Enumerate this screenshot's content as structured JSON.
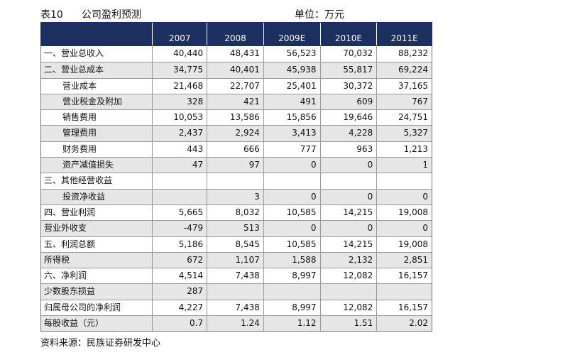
{
  "header": {
    "table_no": "表10",
    "caption": "公司盈利预测",
    "unit": "单位：万元"
  },
  "columns": [
    "",
    "2007",
    "2008",
    "2009E",
    "2010E",
    "2011E"
  ],
  "rows": [
    {
      "label": "一、营业总收入",
      "indent": false,
      "values": [
        "40,440",
        "48,431",
        "56,523",
        "70,032",
        "88,232"
      ]
    },
    {
      "label": "二、营业总成本",
      "indent": false,
      "values": [
        "34,775",
        "40,401",
        "45,938",
        "55,817",
        "69,224"
      ]
    },
    {
      "label": "营业成本",
      "indent": true,
      "values": [
        "21,468",
        "22,707",
        "25,401",
        "30,372",
        "37,165"
      ]
    },
    {
      "label": "营业税金及附加",
      "indent": true,
      "values": [
        "328",
        "421",
        "491",
        "609",
        "767"
      ]
    },
    {
      "label": "销售费用",
      "indent": true,
      "values": [
        "10,053",
        "13,586",
        "15,856",
        "19,646",
        "24,751"
      ]
    },
    {
      "label": "管理费用",
      "indent": true,
      "values": [
        "2,437",
        "2,924",
        "3,413",
        "4,228",
        "5,327"
      ]
    },
    {
      "label": "财务费用",
      "indent": true,
      "values": [
        "443",
        "666",
        "777",
        "963",
        "1,213"
      ]
    },
    {
      "label": "资产减值损失",
      "indent": true,
      "values": [
        "47",
        "97",
        "0",
        "0",
        "1"
      ]
    },
    {
      "label": "三、其他经营收益",
      "indent": false,
      "values": [
        "",
        "",
        "",
        "",
        ""
      ]
    },
    {
      "label": "投资净收益",
      "indent": true,
      "values": [
        "",
        "3",
        "0",
        "0",
        "0"
      ]
    },
    {
      "label": "四、营业利润",
      "indent": false,
      "values": [
        "5,665",
        "8,032",
        "10,585",
        "14,215",
        "19,008"
      ]
    },
    {
      "label": "营业外收支",
      "indent": false,
      "values": [
        "-479",
        "513",
        "0",
        "0",
        "0"
      ]
    },
    {
      "label": "五、利润总额",
      "indent": false,
      "values": [
        "5,186",
        "8,545",
        "10,585",
        "14,215",
        "19,008"
      ]
    },
    {
      "label": "所得税",
      "indent": false,
      "values": [
        "672",
        "1,107",
        "1,588",
        "2,132",
        "2,851"
      ]
    },
    {
      "label": "六、净利润",
      "indent": false,
      "values": [
        "4,514",
        "7,438",
        "8,997",
        "12,082",
        "16,157"
      ]
    },
    {
      "label": "少数股东损益",
      "indent": false,
      "values": [
        "287",
        "",
        "",
        "",
        ""
      ]
    },
    {
      "label": "归属母公司的净利润",
      "indent": false,
      "values": [
        "4,227",
        "7,438",
        "8,997",
        "12,082",
        "16,157"
      ]
    },
    {
      "label": "每股收益（元）",
      "indent": false,
      "values": [
        "0.7",
        "1.24",
        "1.12",
        "1.51",
        "2.02"
      ]
    }
  ],
  "footer": {
    "source": "资料来源：民族证券研发中心"
  }
}
